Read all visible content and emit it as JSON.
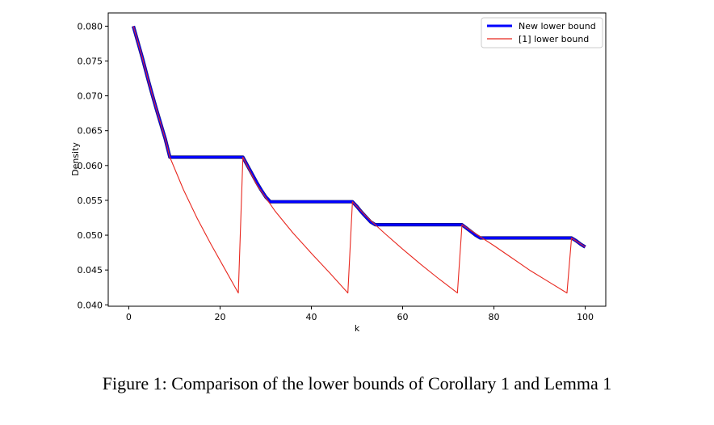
{
  "caption": "Figure 1: Comparison of the lower bounds of Corollary 1 and Lemma 1",
  "chart_data": {
    "type": "line",
    "xlabel": "k",
    "ylabel": "Density",
    "xlim": [
      -4.5,
      104.5
    ],
    "ylim": [
      0.0398,
      0.0819
    ],
    "xticks": [
      0,
      20,
      40,
      60,
      80,
      100
    ],
    "xtick_labels": [
      "0",
      "20",
      "40",
      "60",
      "80",
      "100"
    ],
    "yticks": [
      0.04,
      0.045,
      0.05,
      0.055,
      0.06,
      0.065,
      0.07,
      0.075,
      0.08
    ],
    "ytick_labels": [
      "0.040",
      "0.045",
      "0.050",
      "0.055",
      "0.060",
      "0.065",
      "0.070",
      "0.075",
      "0.080"
    ],
    "grid": false,
    "legend_position": "top-right",
    "series": [
      {
        "name": "New lower bound",
        "color": "#0000ff",
        "outline_color": "#1a1a6e",
        "x": [
          1,
          2,
          3,
          4,
          5,
          6,
          7,
          8,
          9,
          25,
          26,
          27,
          28,
          29,
          30,
          31,
          49,
          50,
          51,
          52,
          53,
          54,
          73,
          74,
          75,
          76,
          77,
          97,
          98,
          99,
          100
        ],
        "y": [
          0.08,
          0.0777,
          0.0754,
          0.0729,
          0.0705,
          0.0682,
          0.066,
          0.0638,
          0.0612,
          0.0612,
          0.06,
          0.0588,
          0.0576,
          0.0565,
          0.0555,
          0.0548,
          0.0548,
          0.0541,
          0.0533,
          0.0526,
          0.0519,
          0.0515,
          0.0515,
          0.051,
          0.0505,
          0.05,
          0.0496,
          0.0496,
          0.0492,
          0.0487,
          0.0483
        ]
      },
      {
        "name": "[1] lower bound",
        "color": "#e8281f",
        "x": [
          1,
          2,
          3,
          4,
          5,
          6,
          7,
          8,
          9,
          12,
          15,
          18,
          21,
          24,
          25,
          28,
          32,
          36,
          40,
          44,
          48,
          49,
          52,
          56,
          60,
          64,
          68,
          72,
          73,
          76,
          80,
          84,
          88,
          92,
          96,
          97,
          100
        ],
        "y": [
          0.08,
          0.0777,
          0.0754,
          0.0729,
          0.0705,
          0.0682,
          0.066,
          0.0638,
          0.0612,
          0.0565,
          0.0524,
          0.0487,
          0.0452,
          0.0417,
          0.0612,
          0.0573,
          0.0535,
          0.0503,
          0.0474,
          0.0446,
          0.0417,
          0.0548,
          0.0527,
          0.0503,
          0.048,
          0.0458,
          0.0437,
          0.0417,
          0.0515,
          0.0502,
          0.0485,
          0.0467,
          0.0449,
          0.0433,
          0.0417,
          0.0496,
          0.0483
        ]
      }
    ]
  }
}
